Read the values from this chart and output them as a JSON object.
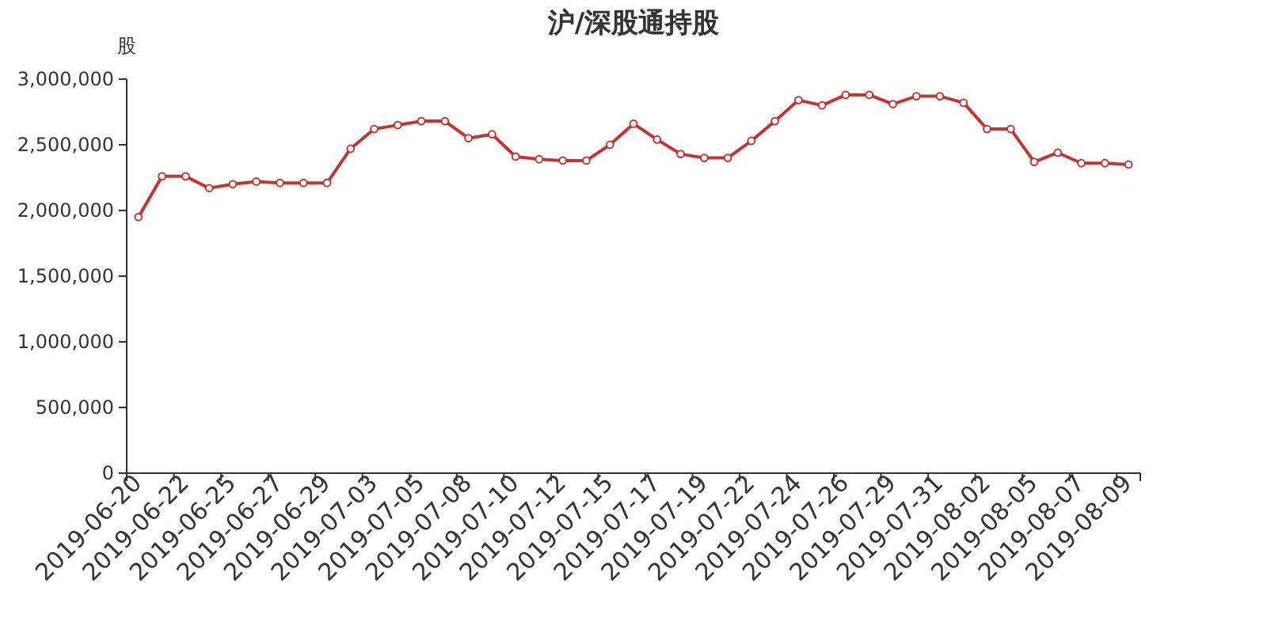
{
  "chart_data": {
    "type": "line",
    "title": "沪/深股通持股",
    "ylabel": "股",
    "categories": [
      "2019-06-20",
      null,
      "2019-06-22",
      null,
      "2019-06-25",
      null,
      "2019-06-27",
      null,
      "2019-06-29",
      null,
      "2019-07-03",
      null,
      "2019-07-05",
      null,
      "2019-07-08",
      null,
      "2019-07-10",
      null,
      "2019-07-12",
      null,
      "2019-07-15",
      null,
      "2019-07-17",
      null,
      "2019-07-19",
      null,
      "2019-07-22",
      null,
      "2019-07-24",
      null,
      "2019-07-26",
      null,
      "2019-07-29",
      null,
      "2019-07-31",
      null,
      "2019-08-02",
      null,
      "2019-08-05",
      null,
      "2019-08-07",
      null,
      "2019-08-09"
    ],
    "series": [
      {
        "color": "#c23531",
        "values": [
          1950000,
          2260000,
          2260000,
          2170000,
          2200000,
          2220000,
          2210000,
          2210000,
          2210000,
          2470000,
          2620000,
          2650000,
          2680000,
          2680000,
          2550000,
          2580000,
          2410000,
          2390000,
          2380000,
          2380000,
          2500000,
          2660000,
          2540000,
          2430000,
          2400000,
          2400000,
          2530000,
          2680000,
          2840000,
          2800000,
          2880000,
          2880000,
          2810000,
          2870000,
          2870000,
          2820000,
          2620000,
          2620000,
          2370000,
          2440000,
          2360000,
          2360000,
          2350000
        ]
      }
    ],
    "ylim": [
      0,
      3000000
    ],
    "yticks": [
      {
        "value": 0,
        "label": "0"
      },
      {
        "value": 500000,
        "label": "500,000"
      },
      {
        "value": 1000000,
        "label": "1,000,000"
      },
      {
        "value": 1500000,
        "label": "1,500,000"
      },
      {
        "value": 2000000,
        "label": "2,000,000"
      },
      {
        "value": 2500000,
        "label": "2,500,000"
      },
      {
        "value": 3000000,
        "label": "3,000,000"
      }
    ],
    "marker": "circle",
    "line_style": "solid",
    "grid": false
  }
}
